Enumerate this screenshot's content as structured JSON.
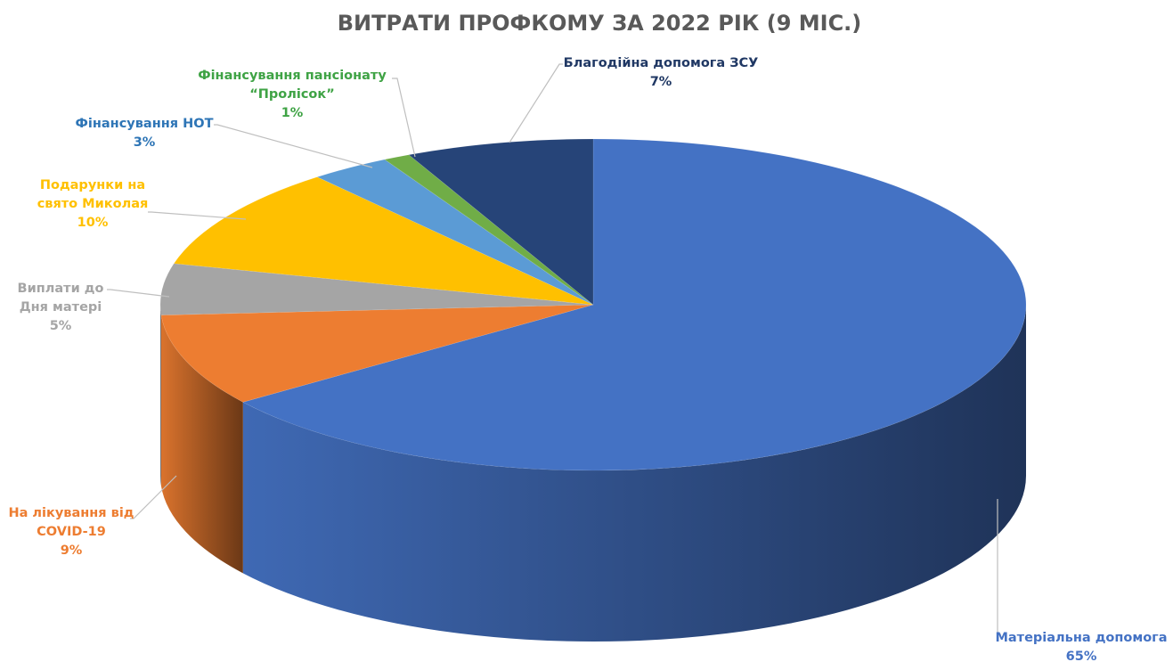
{
  "chart_data": {
    "type": "pie",
    "variant": "3d",
    "title": "ВИТРАТИ ПРОФКОМУ ЗА 2022 РІК (9 МІС.)",
    "legend": "none",
    "slices": [
      {
        "label_lines": [
          "Матеріальна допомога"
        ],
        "value": 65,
        "value_label": "65%",
        "color": "#4472C4",
        "label_color": "#4472C4"
      },
      {
        "label_lines": [
          "На лікування від",
          "COVID-19"
        ],
        "value": 9,
        "value_label": "9%",
        "color": "#ED7D31",
        "label_color": "#ED7D31"
      },
      {
        "label_lines": [
          "Виплати до",
          "Дня матері"
        ],
        "value": 5,
        "value_label": "5%",
        "color": "#A5A5A5",
        "label_color": "#A5A5A5"
      },
      {
        "label_lines": [
          "Подарунки на",
          "свято Миколая"
        ],
        "value": 10,
        "value_label": "10%",
        "color": "#FFC000",
        "label_color": "#FFC000"
      },
      {
        "label_lines": [
          "Фінансування НОТ"
        ],
        "value": 3,
        "value_label": "3%",
        "color": "#5B9BD5",
        "label_color": "#2E75B6"
      },
      {
        "label_lines": [
          "Фінансування пансіонату",
          "“Пролісок”"
        ],
        "value": 1,
        "value_label": "1%",
        "color": "#70AD47",
        "label_color": "#3FA345"
      },
      {
        "label_lines": [
          "Благодійна допомога ЗСУ"
        ],
        "value": 7,
        "value_label": "7%",
        "color": "#264478",
        "label_color": "#203864"
      }
    ]
  }
}
